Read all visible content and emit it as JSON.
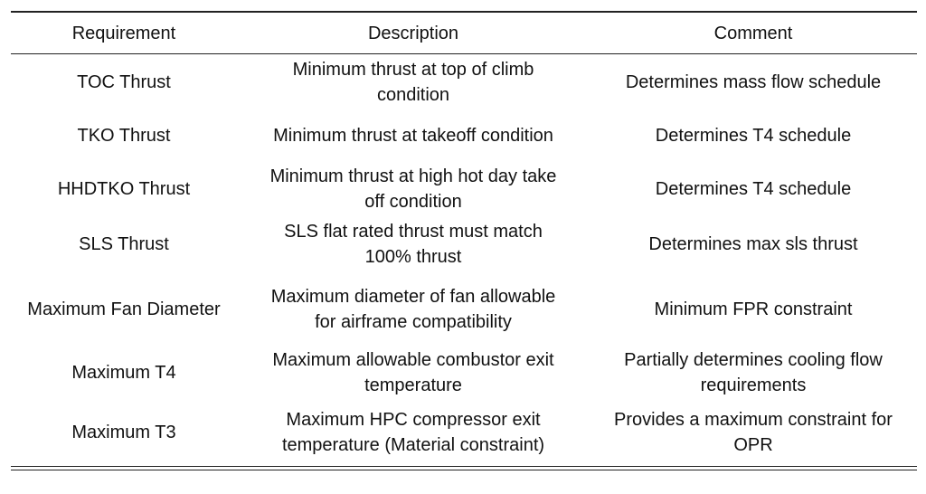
{
  "table": {
    "headers": [
      "Requirement",
      "Description",
      "Comment"
    ],
    "rows": [
      {
        "requirement": "TOC Thrust",
        "description": [
          "Minimum thrust at top of climb",
          "condition"
        ],
        "comment": [
          "Determines mass flow schedule"
        ]
      },
      {
        "requirement": "TKO Thrust",
        "description": [
          "Minimum thrust at takeoff condition"
        ],
        "comment": [
          "Determines T4 schedule"
        ]
      },
      {
        "requirement": "HHDTKO Thrust",
        "description": [
          "Minimum thrust at high hot day take",
          "off condition"
        ],
        "comment": [
          "Determines T4 schedule"
        ]
      },
      {
        "requirement": "SLS Thrust",
        "description": [
          "SLS flat rated thrust must match",
          "100% thrust"
        ],
        "comment": [
          "Determines max sls thrust"
        ]
      },
      {
        "requirement": "Maximum Fan Diameter",
        "description": [
          "Maximum diameter of fan allowable",
          "for airframe compatibility"
        ],
        "comment": [
          "Minimum FPR constraint"
        ]
      },
      {
        "requirement": "Maximum T4",
        "description": [
          "Maximum allowable combustor exit",
          "temperature"
        ],
        "comment": [
          "Partially determines cooling flow",
          "requirements"
        ]
      },
      {
        "requirement": "Maximum T3",
        "description": [
          "Maximum HPC compressor exit",
          "temperature (Material constraint)"
        ],
        "comment": [
          "Provides a maximum constraint for",
          "OPR"
        ]
      }
    ]
  }
}
